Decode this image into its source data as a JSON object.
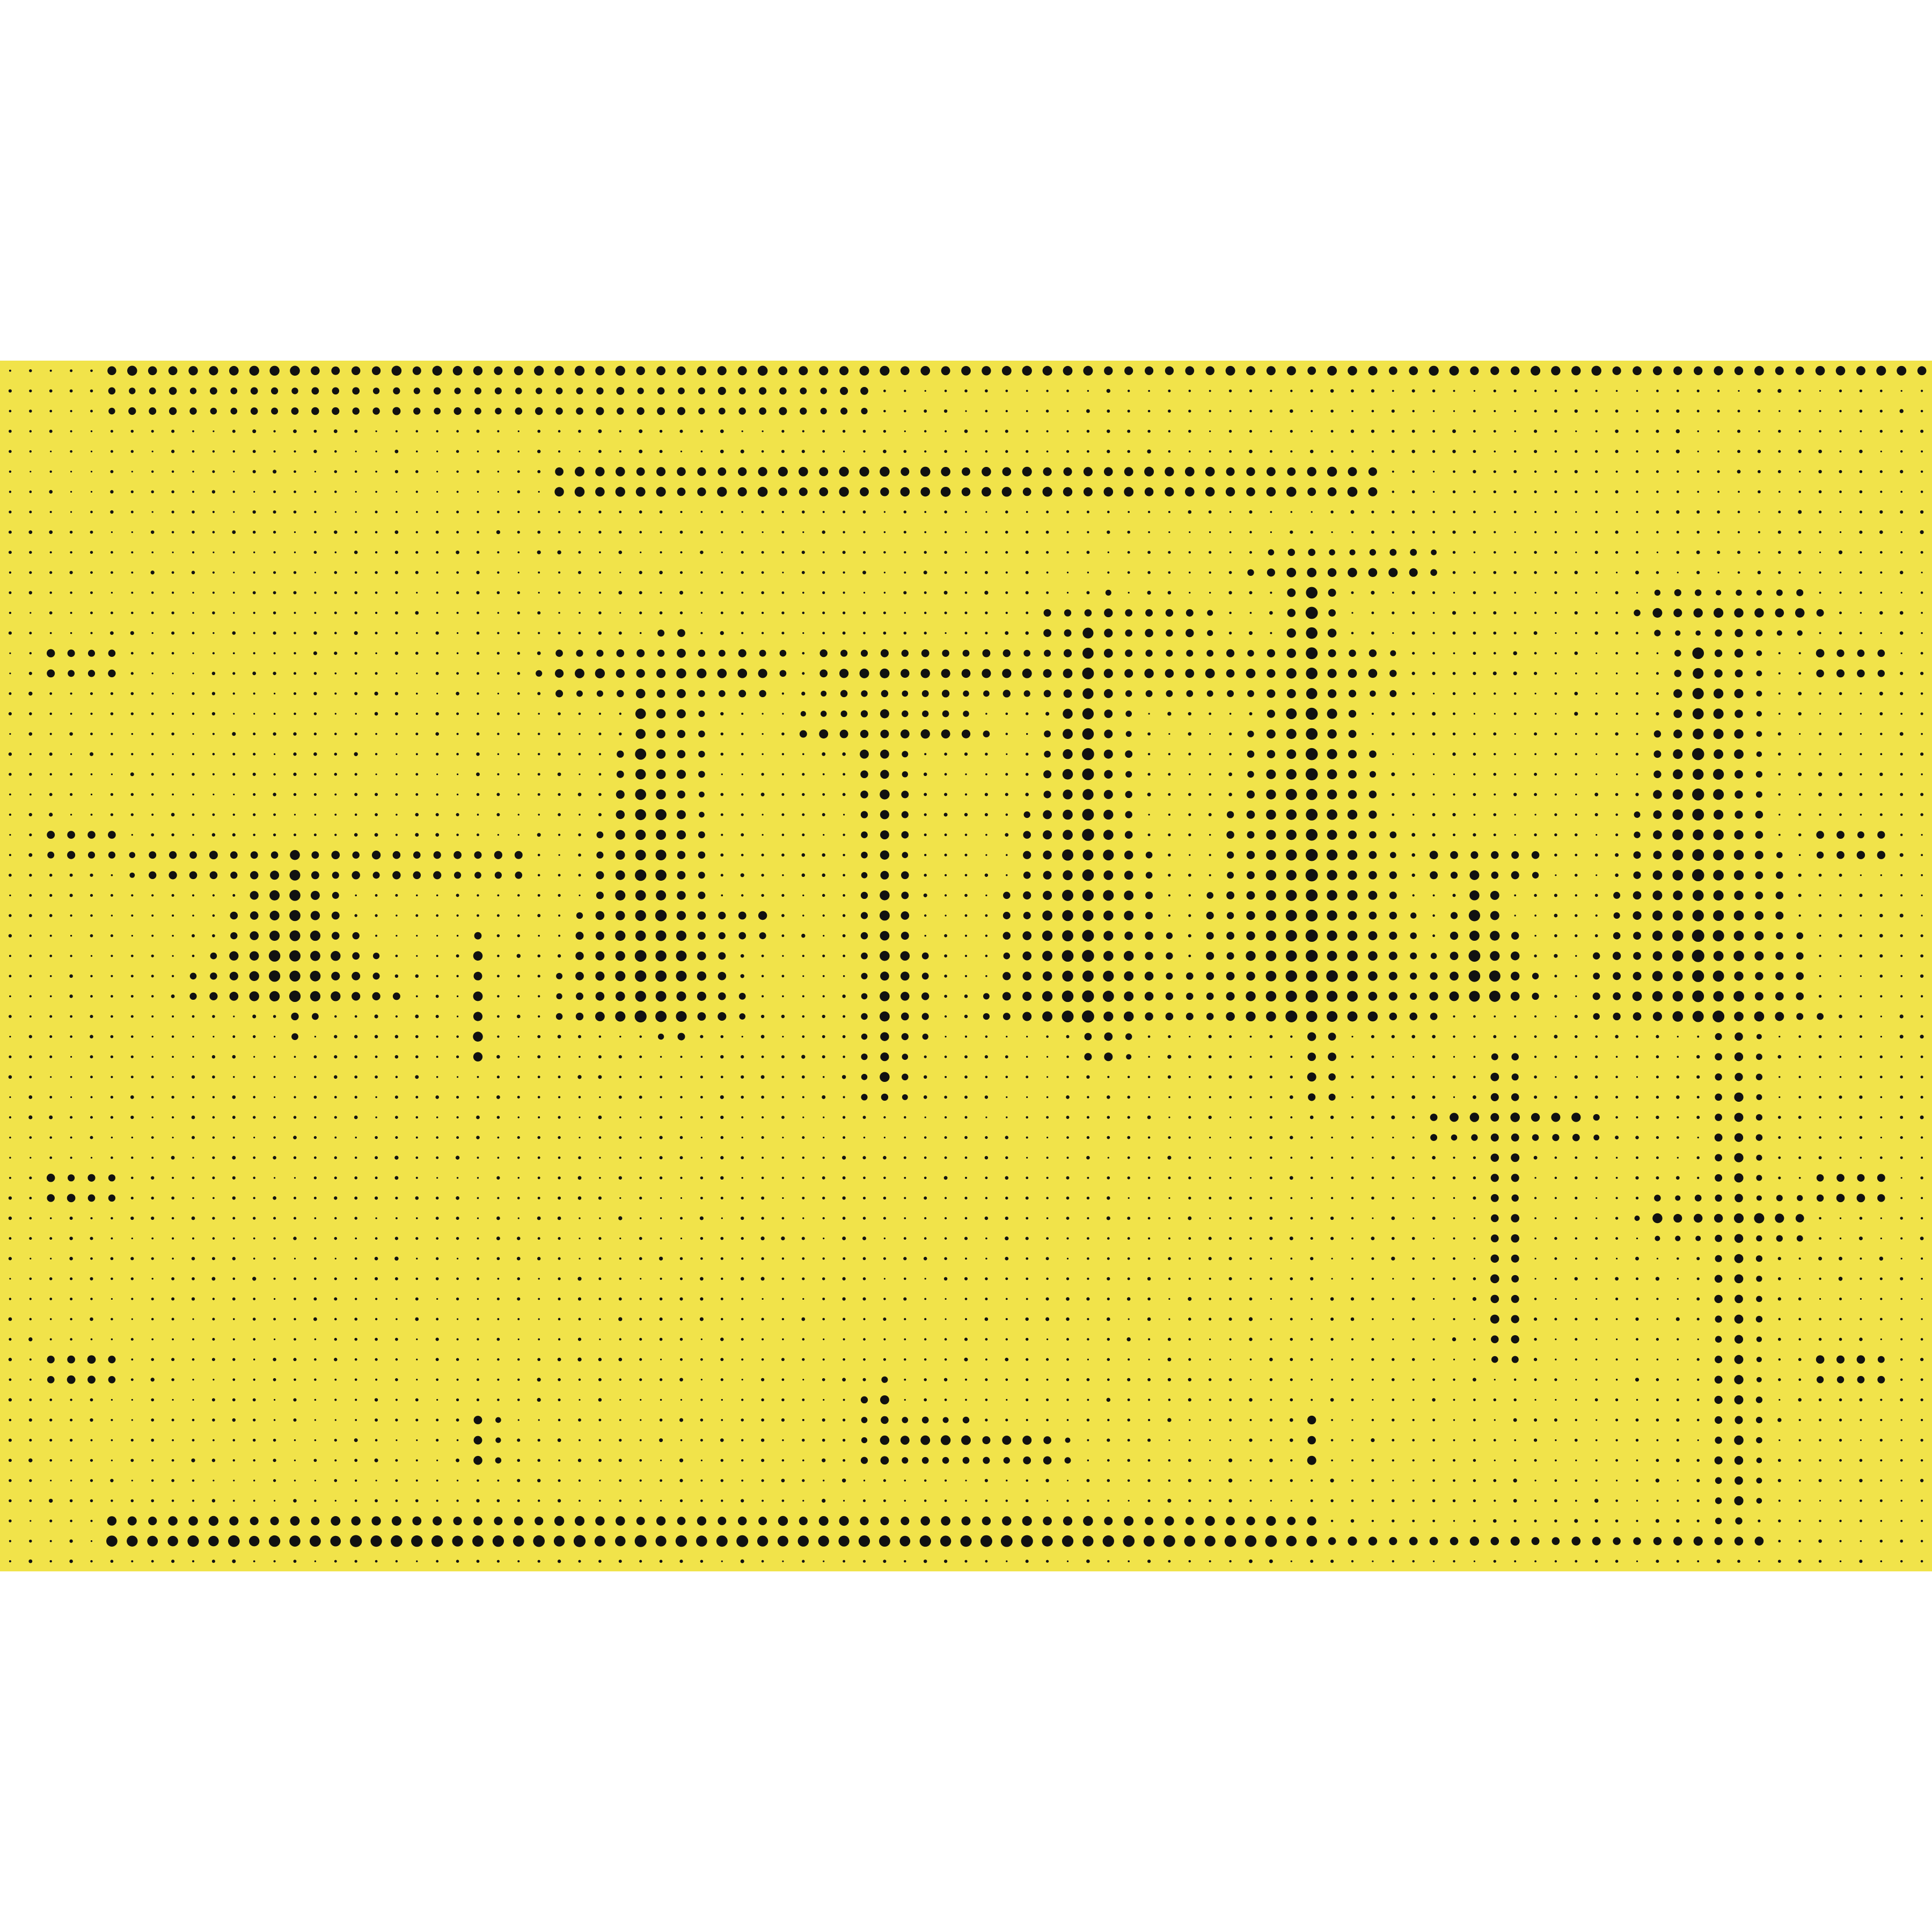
{
  "artwork": {
    "type": "halftone-dot-poster",
    "background_color": "#F1E34A",
    "dot_color": "#111111",
    "page_color": "#ffffff",
    "grid_columns": 95,
    "grid_rows": 60
  }
}
